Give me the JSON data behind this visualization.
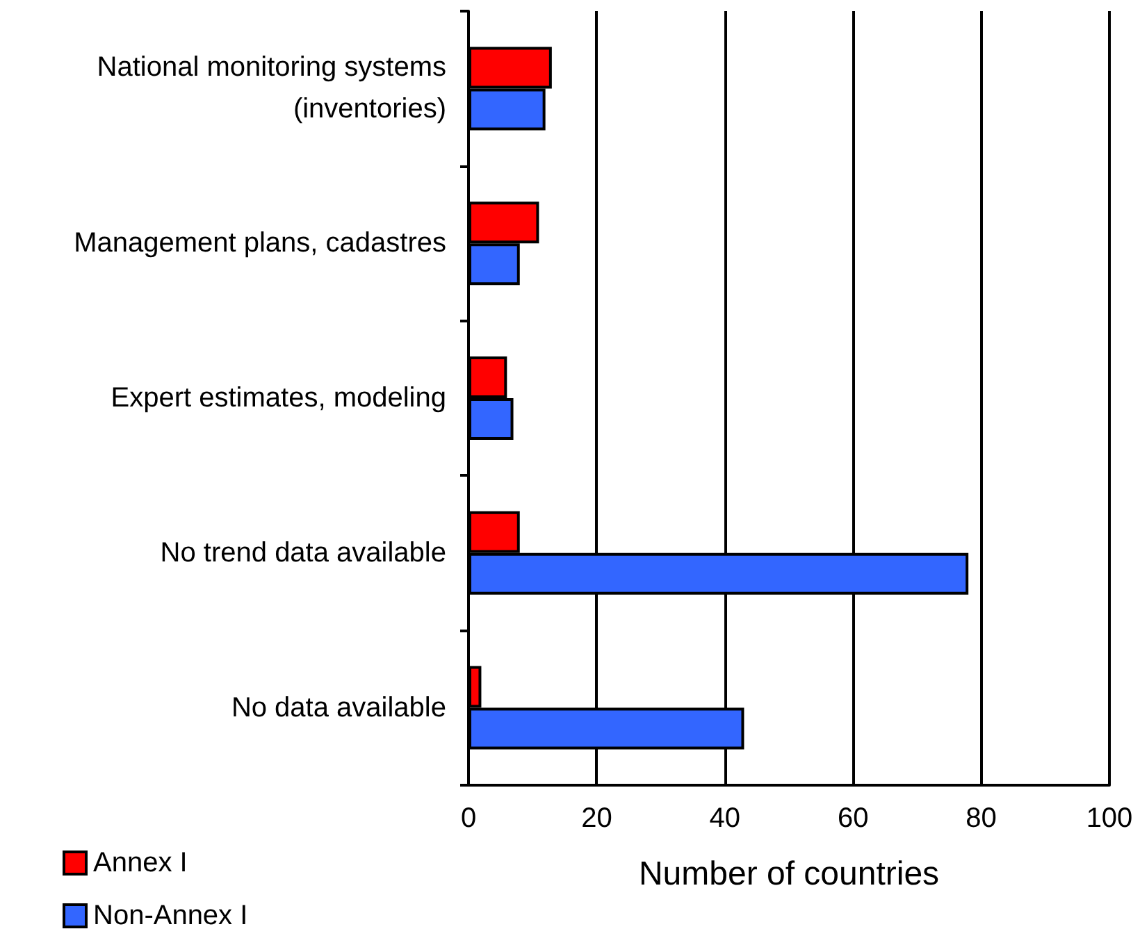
{
  "chart_data": {
    "type": "bar",
    "orientation": "horizontal",
    "xlabel": "Number of countries",
    "categories": [
      "National monitoring systems\n(inventories)",
      "Management plans, cadastres",
      "Expert estimates, modeling",
      "No trend data available",
      "No data available"
    ],
    "series": [
      {
        "name": "Annex I",
        "color": "#ff0000",
        "values": [
          13,
          11,
          6,
          8,
          2
        ]
      },
      {
        "name": "Non-Annex I",
        "color": "#3366ff",
        "values": [
          12,
          8,
          7,
          78,
          43
        ]
      }
    ],
    "xlim": [
      0,
      100
    ],
    "xticks": [
      0,
      20,
      40,
      60,
      80,
      100
    ],
    "grid": "x",
    "legend": "bottom left"
  }
}
